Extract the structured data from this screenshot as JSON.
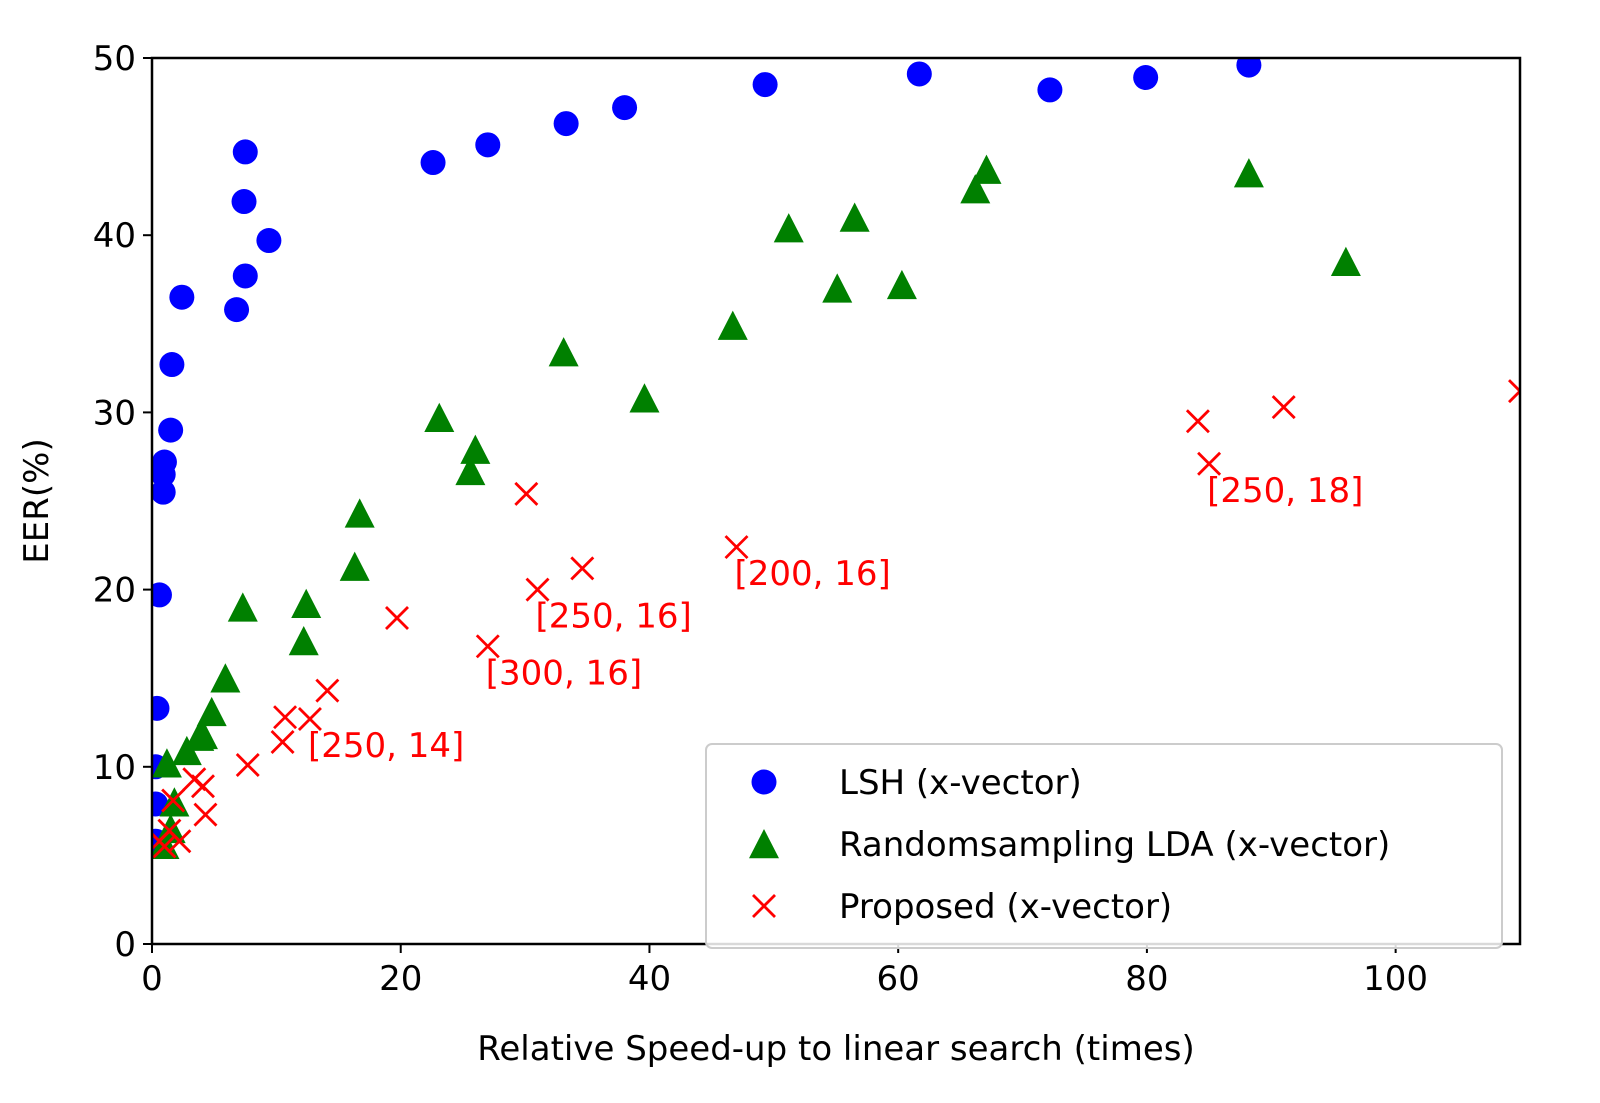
{
  "chart_data": {
    "type": "scatter",
    "title": "",
    "xlabel": "Relative Speed-up to linear search (times)",
    "ylabel": "EER(%)",
    "xlim": [
      0,
      110
    ],
    "ylim": [
      0,
      50
    ],
    "xticks": [
      0,
      20,
      40,
      60,
      80,
      100
    ],
    "yticks": [
      0,
      10,
      20,
      30,
      40,
      50
    ],
    "grid": false,
    "legend_position": "lower-right",
    "series": [
      {
        "name": "LSH (x-vector)",
        "marker": "circle",
        "color": "#0000ff",
        "points": [
          [
            0.3,
            5.8
          ],
          [
            0.3,
            7.9
          ],
          [
            0.3,
            10.0
          ],
          [
            0.4,
            13.3
          ],
          [
            0.6,
            19.7
          ],
          [
            0.9,
            25.5
          ],
          [
            0.9,
            26.5
          ],
          [
            1.0,
            27.2
          ],
          [
            1.5,
            29.0
          ],
          [
            1.6,
            32.7
          ],
          [
            2.4,
            36.5
          ],
          [
            6.8,
            35.8
          ],
          [
            7.5,
            37.7
          ],
          [
            7.4,
            41.9
          ],
          [
            7.5,
            44.7
          ],
          [
            9.4,
            39.7
          ],
          [
            22.6,
            44.1
          ],
          [
            27.0,
            45.1
          ],
          [
            33.3,
            46.3
          ],
          [
            38.0,
            47.2
          ],
          [
            49.3,
            48.5
          ],
          [
            61.7,
            49.1
          ],
          [
            72.2,
            48.2
          ],
          [
            79.9,
            48.9
          ],
          [
            88.2,
            49.6
          ]
        ]
      },
      {
        "name": "Randomsampling LDA (x-vector)",
        "marker": "triangle",
        "color": "#008000",
        "points": [
          [
            1.0,
            5.6
          ],
          [
            1.2,
            10.2
          ],
          [
            1.5,
            6.5
          ],
          [
            1.8,
            8.0
          ],
          [
            2.8,
            10.9
          ],
          [
            3.8,
            11.7
          ],
          [
            4.1,
            11.8
          ],
          [
            4.8,
            13.1
          ],
          [
            5.9,
            15.0
          ],
          [
            7.3,
            19.0
          ],
          [
            12.2,
            17.1
          ],
          [
            12.4,
            19.2
          ],
          [
            16.3,
            21.3
          ],
          [
            16.7,
            24.3
          ],
          [
            23.1,
            29.7
          ],
          [
            25.6,
            26.7
          ],
          [
            26.0,
            27.9
          ],
          [
            33.1,
            33.4
          ],
          [
            39.6,
            30.8
          ],
          [
            46.7,
            34.9
          ],
          [
            51.2,
            40.4
          ],
          [
            55.1,
            37.0
          ],
          [
            56.5,
            41.0
          ],
          [
            60.3,
            37.2
          ],
          [
            66.2,
            42.6
          ],
          [
            67.1,
            43.7
          ],
          [
            88.2,
            43.5
          ],
          [
            96.0,
            38.5
          ]
        ]
      },
      {
        "name": "Proposed (x-vector)",
        "marker": "x",
        "color": "#ff0000",
        "points": [
          [
            0.6,
            5.8
          ],
          [
            1.0,
            5.5
          ],
          [
            1.4,
            6.4
          ],
          [
            1.7,
            8.1
          ],
          [
            2.2,
            5.8
          ],
          [
            3.4,
            9.3
          ],
          [
            4.1,
            8.9
          ],
          [
            4.3,
            7.3
          ],
          [
            7.7,
            10.1
          ],
          [
            10.5,
            11.4
          ],
          [
            10.7,
            12.8
          ],
          [
            12.7,
            12.7
          ],
          [
            14.1,
            14.3
          ],
          [
            19.7,
            18.4
          ],
          [
            27.0,
            16.8
          ],
          [
            30.1,
            25.4
          ],
          [
            31.0,
            20.0
          ],
          [
            34.6,
            21.2
          ],
          [
            47.0,
            22.4
          ],
          [
            84.1,
            29.5
          ],
          [
            85.0,
            27.1
          ],
          [
            91.0,
            30.3
          ],
          [
            110.0,
            31.2
          ]
        ]
      }
    ],
    "annotations": [
      {
        "text": "[250, 14]",
        "x": 12.7,
        "y": 12.7
      },
      {
        "text": "[300, 16]",
        "x": 27.0,
        "y": 16.8
      },
      {
        "text": "[250, 16]",
        "x": 31.0,
        "y": 20.0
      },
      {
        "text": "[200, 16]",
        "x": 47.0,
        "y": 22.4
      },
      {
        "text": "[250, 18]",
        "x": 85.0,
        "y": 27.1
      }
    ],
    "annotation_color": "#ff0000"
  }
}
